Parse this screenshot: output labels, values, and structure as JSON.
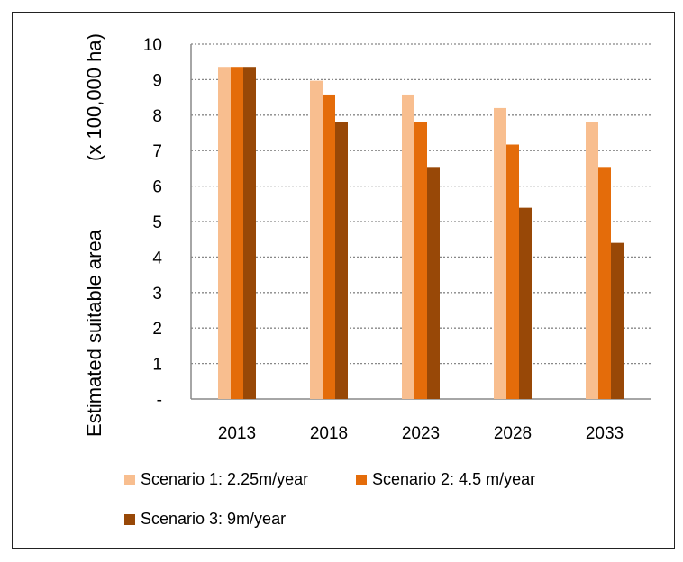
{
  "chart_data": {
    "type": "bar",
    "title": "",
    "xlabel": "",
    "ylabel": "Estimated suitable area",
    "ylabel_unit": "(x 100,000 ha)",
    "categories": [
      "2013",
      "2018",
      "2023",
      "2028",
      "2033"
    ],
    "ylim": [
      0,
      10
    ],
    "yticks": [
      "-",
      "1",
      "2",
      "3",
      "4",
      "5",
      "6",
      "7",
      "8",
      "9",
      "10"
    ],
    "grid": true,
    "legend_position": "bottom",
    "series": [
      {
        "name": "Scenario 1: 2.25m/year",
        "color": "#F8BE8F",
        "values": [
          9.36,
          8.97,
          8.58,
          8.2,
          7.81
        ]
      },
      {
        "name": "Scenario 2: 4.5 m/year",
        "color": "#E46C0A",
        "values": [
          9.36,
          8.58,
          7.81,
          7.17,
          6.54
        ]
      },
      {
        "name": "Scenario 3: 9m/year",
        "color": "#984807",
        "values": [
          9.36,
          7.81,
          6.54,
          5.39,
          4.4
        ]
      }
    ]
  }
}
